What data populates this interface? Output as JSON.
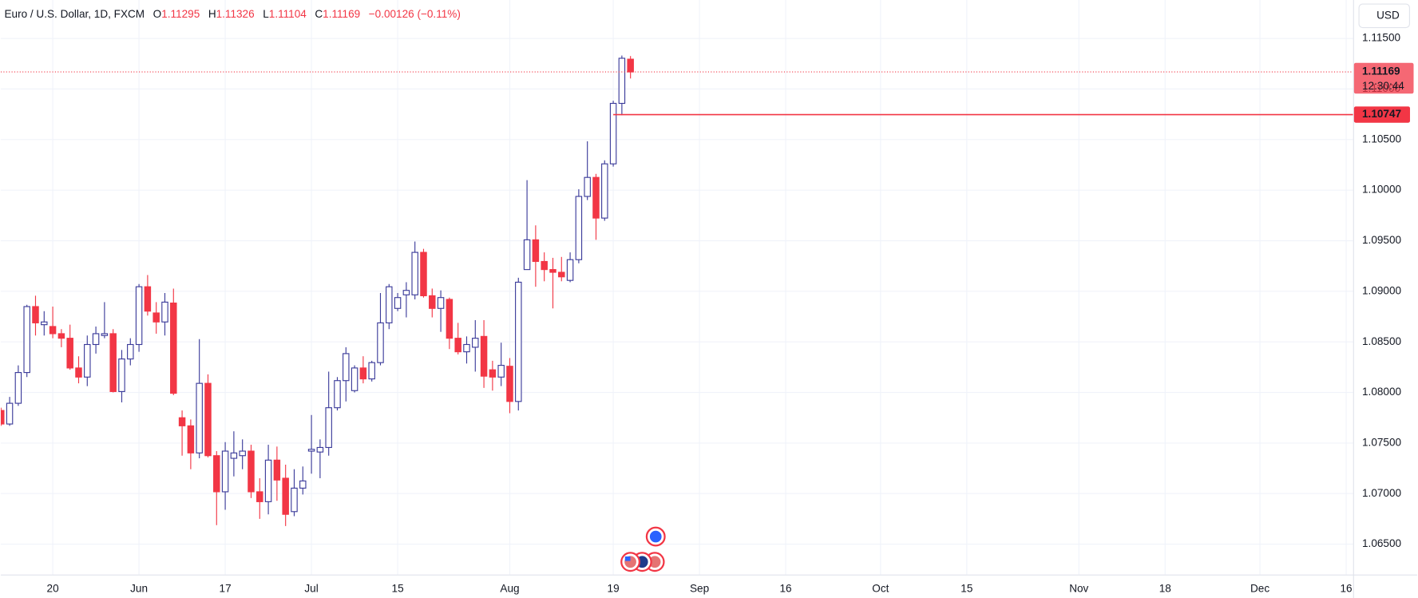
{
  "chart_data": {
    "type": "candlestick",
    "title": "Euro / U.S. Dollar, 1D, FXCM",
    "ohlc_labels": [
      "O",
      "H",
      "L",
      "C"
    ],
    "change": "−0.00126 (−0.11%)",
    "currency": "USD",
    "countdown": "12:30:44",
    "up_color": "#3b3b9a",
    "down_color": "#f23645",
    "open": [
      1.07822,
      1.07688,
      1.07893,
      1.08197,
      1.08849,
      1.0867,
      1.08652,
      1.08581,
      1.08536,
      1.08242,
      1.08152,
      1.08474,
      1.08563,
      1.08581,
      1.08009,
      1.08331,
      1.08474,
      1.09045,
      1.08786,
      1.08697,
      1.08884,
      1.0775,
      1.0767,
      1.07402,
      1.0809,
      1.07375,
      1.07018,
      1.07349,
      1.07375,
      1.0742,
      1.07018,
      1.0692,
      1.07331,
      1.07152,
      1.06822,
      1.07054,
      1.0742,
      1.07411,
      1.07456,
      1.07849,
      1.08117,
      1.08018,
      1.08242,
      1.08134,
      1.08295,
      1.08688,
      1.08831,
      1.08965,
      1.08965,
      1.09385,
      1.08956,
      1.08831,
      1.0892,
      1.08536,
      1.08402,
      1.08447,
      1.08554,
      1.08224,
      1.08152,
      1.08259,
      1.07911,
      1.09215,
      1.09509,
      1.09295,
      1.09215,
      1.09188,
      1.09108,
      1.09313,
      1.09938,
      1.10126,
      1.09724,
      1.1026,
      1.10858,
      1.11295
    ],
    "high": [
      1.07849,
      1.07956,
      1.08268,
      1.08867,
      1.08956,
      1.08804,
      1.08849,
      1.08626,
      1.0867,
      1.08358,
      1.08563,
      1.08652,
      1.08893,
      1.08626,
      1.0842,
      1.08536,
      1.09072,
      1.09161,
      1.08893,
      1.08983,
      1.09027,
      1.07822,
      1.07733,
      1.08527,
      1.08179,
      1.0742,
      1.07509,
      1.07616,
      1.07536,
      1.07483,
      1.07152,
      1.07483,
      1.07465,
      1.07286,
      1.07241,
      1.07268,
      1.07777,
      1.07536,
      1.08206,
      1.08152,
      1.08447,
      1.08268,
      1.08358,
      1.08313,
      1.08983,
      1.09072,
      1.08983,
      1.0909,
      1.09492,
      1.0942,
      1.09027,
      1.09009,
      1.08938,
      1.08688,
      1.08554,
      1.08715,
      1.08715,
      1.08313,
      1.08492,
      1.0834,
      1.09134,
      1.10099,
      1.09652,
      1.09385,
      1.09331,
      1.0934,
      1.09385,
      1.10009,
      1.10483,
      1.10161,
      1.10295,
      1.10884,
      1.11331,
      1.11326
    ],
    "low": [
      1.0767,
      1.0767,
      1.07867,
      1.08152,
      1.08563,
      1.08563,
      1.08536,
      1.08447,
      1.08224,
      1.0809,
      1.08063,
      1.08384,
      1.08536,
      1.08,
      1.07902,
      1.08268,
      1.08402,
      1.0876,
      1.08581,
      1.08563,
      1.07974,
      1.07375,
      1.07241,
      1.07349,
      1.07358,
      1.06688,
      1.0684,
      1.0717,
      1.07241,
      1.06956,
      1.0675,
      1.06795,
      1.06929,
      1.06679,
      1.06777,
      1.06991,
      1.07197,
      1.07152,
      1.07375,
      1.07822,
      1.07911,
      1.08,
      1.0809,
      1.08108,
      1.08268,
      1.08626,
      1.08804,
      1.08742,
      1.0892,
      1.08938,
      1.08742,
      1.08599,
      1.08429,
      1.08376,
      1.08286,
      1.08206,
      1.08045,
      1.08018,
      1.08063,
      1.07795,
      1.07822,
      1.09215,
      1.09045,
      1.09099,
      1.08831,
      1.09099,
      1.0909,
      1.09277,
      1.09902,
      1.09509,
      1.09697,
      1.10233,
      1.10741,
      1.11104
    ],
    "close": [
      1.07688,
      1.07893,
      1.08197,
      1.08849,
      1.08688,
      1.08697,
      1.08581,
      1.08536,
      1.08242,
      1.08152,
      1.08474,
      1.08581,
      1.08581,
      1.08009,
      1.08331,
      1.08474,
      1.09045,
      1.08804,
      1.08697,
      1.08893,
      1.07992,
      1.0767,
      1.07402,
      1.0809,
      1.07375,
      1.07018,
      1.0742,
      1.07402,
      1.0742,
      1.07018,
      1.0692,
      1.07331,
      1.07134,
      1.06795,
      1.07054,
      1.07125,
      1.07438,
      1.07456,
      1.07849,
      1.08117,
      1.08384,
      1.08242,
      1.08134,
      1.08295,
      1.08688,
      1.09045,
      1.08938,
      1.09009,
      1.09385,
      1.08956,
      1.08831,
      1.08938,
      1.08536,
      1.08402,
      1.08474,
      1.08536,
      1.08161,
      1.08152,
      1.08268,
      1.07911,
      1.0909,
      1.09509,
      1.09295,
      1.09215,
      1.09188,
      1.09143,
      1.09313,
      1.09938,
      1.10126,
      1.09724,
      1.1026,
      1.10858,
      1.11304,
      1.11169
    ],
    "xlim": [
      -0.03,
      156.8
    ],
    "xticks": [
      {
        "value": 6,
        "label": "20"
      },
      {
        "value": 16,
        "label": "Jun"
      },
      {
        "value": 26,
        "label": "17"
      },
      {
        "value": 36,
        "label": "Jul"
      },
      {
        "value": 46,
        "label": "15"
      },
      {
        "value": 59,
        "label": "Aug"
      },
      {
        "value": 71,
        "label": "19"
      },
      {
        "value": 81,
        "label": "Sep"
      },
      {
        "value": 91,
        "label": "16"
      },
      {
        "value": 102,
        "label": "Oct"
      },
      {
        "value": 112,
        "label": "15"
      },
      {
        "value": 125,
        "label": "Nov"
      },
      {
        "value": 135,
        "label": "18"
      },
      {
        "value": 146,
        "label": "Dec"
      },
      {
        "value": 156,
        "label": "16"
      }
    ],
    "ylim": [
      1.062,
      1.1188
    ],
    "yticks": [
      {
        "value": 1.065,
        "label": "1.06500"
      },
      {
        "value": 1.07,
        "label": "1.07000"
      },
      {
        "value": 1.075,
        "label": "1.07500"
      },
      {
        "value": 1.08,
        "label": "1.08000"
      },
      {
        "value": 1.085,
        "label": "1.08500"
      },
      {
        "value": 1.09,
        "label": "1.09000"
      },
      {
        "value": 1.095,
        "label": "1.09500"
      },
      {
        "value": 1.1,
        "label": "1.10000"
      },
      {
        "value": 1.105,
        "label": "1.10500"
      },
      {
        "value": 1.11,
        "label": "1.11000"
      },
      {
        "value": 1.115,
        "label": "1.11500"
      }
    ],
    "grid": true,
    "hline": {
      "value": 1.10747,
      "from_bar": 71,
      "color": "#f23645"
    }
  }
}
